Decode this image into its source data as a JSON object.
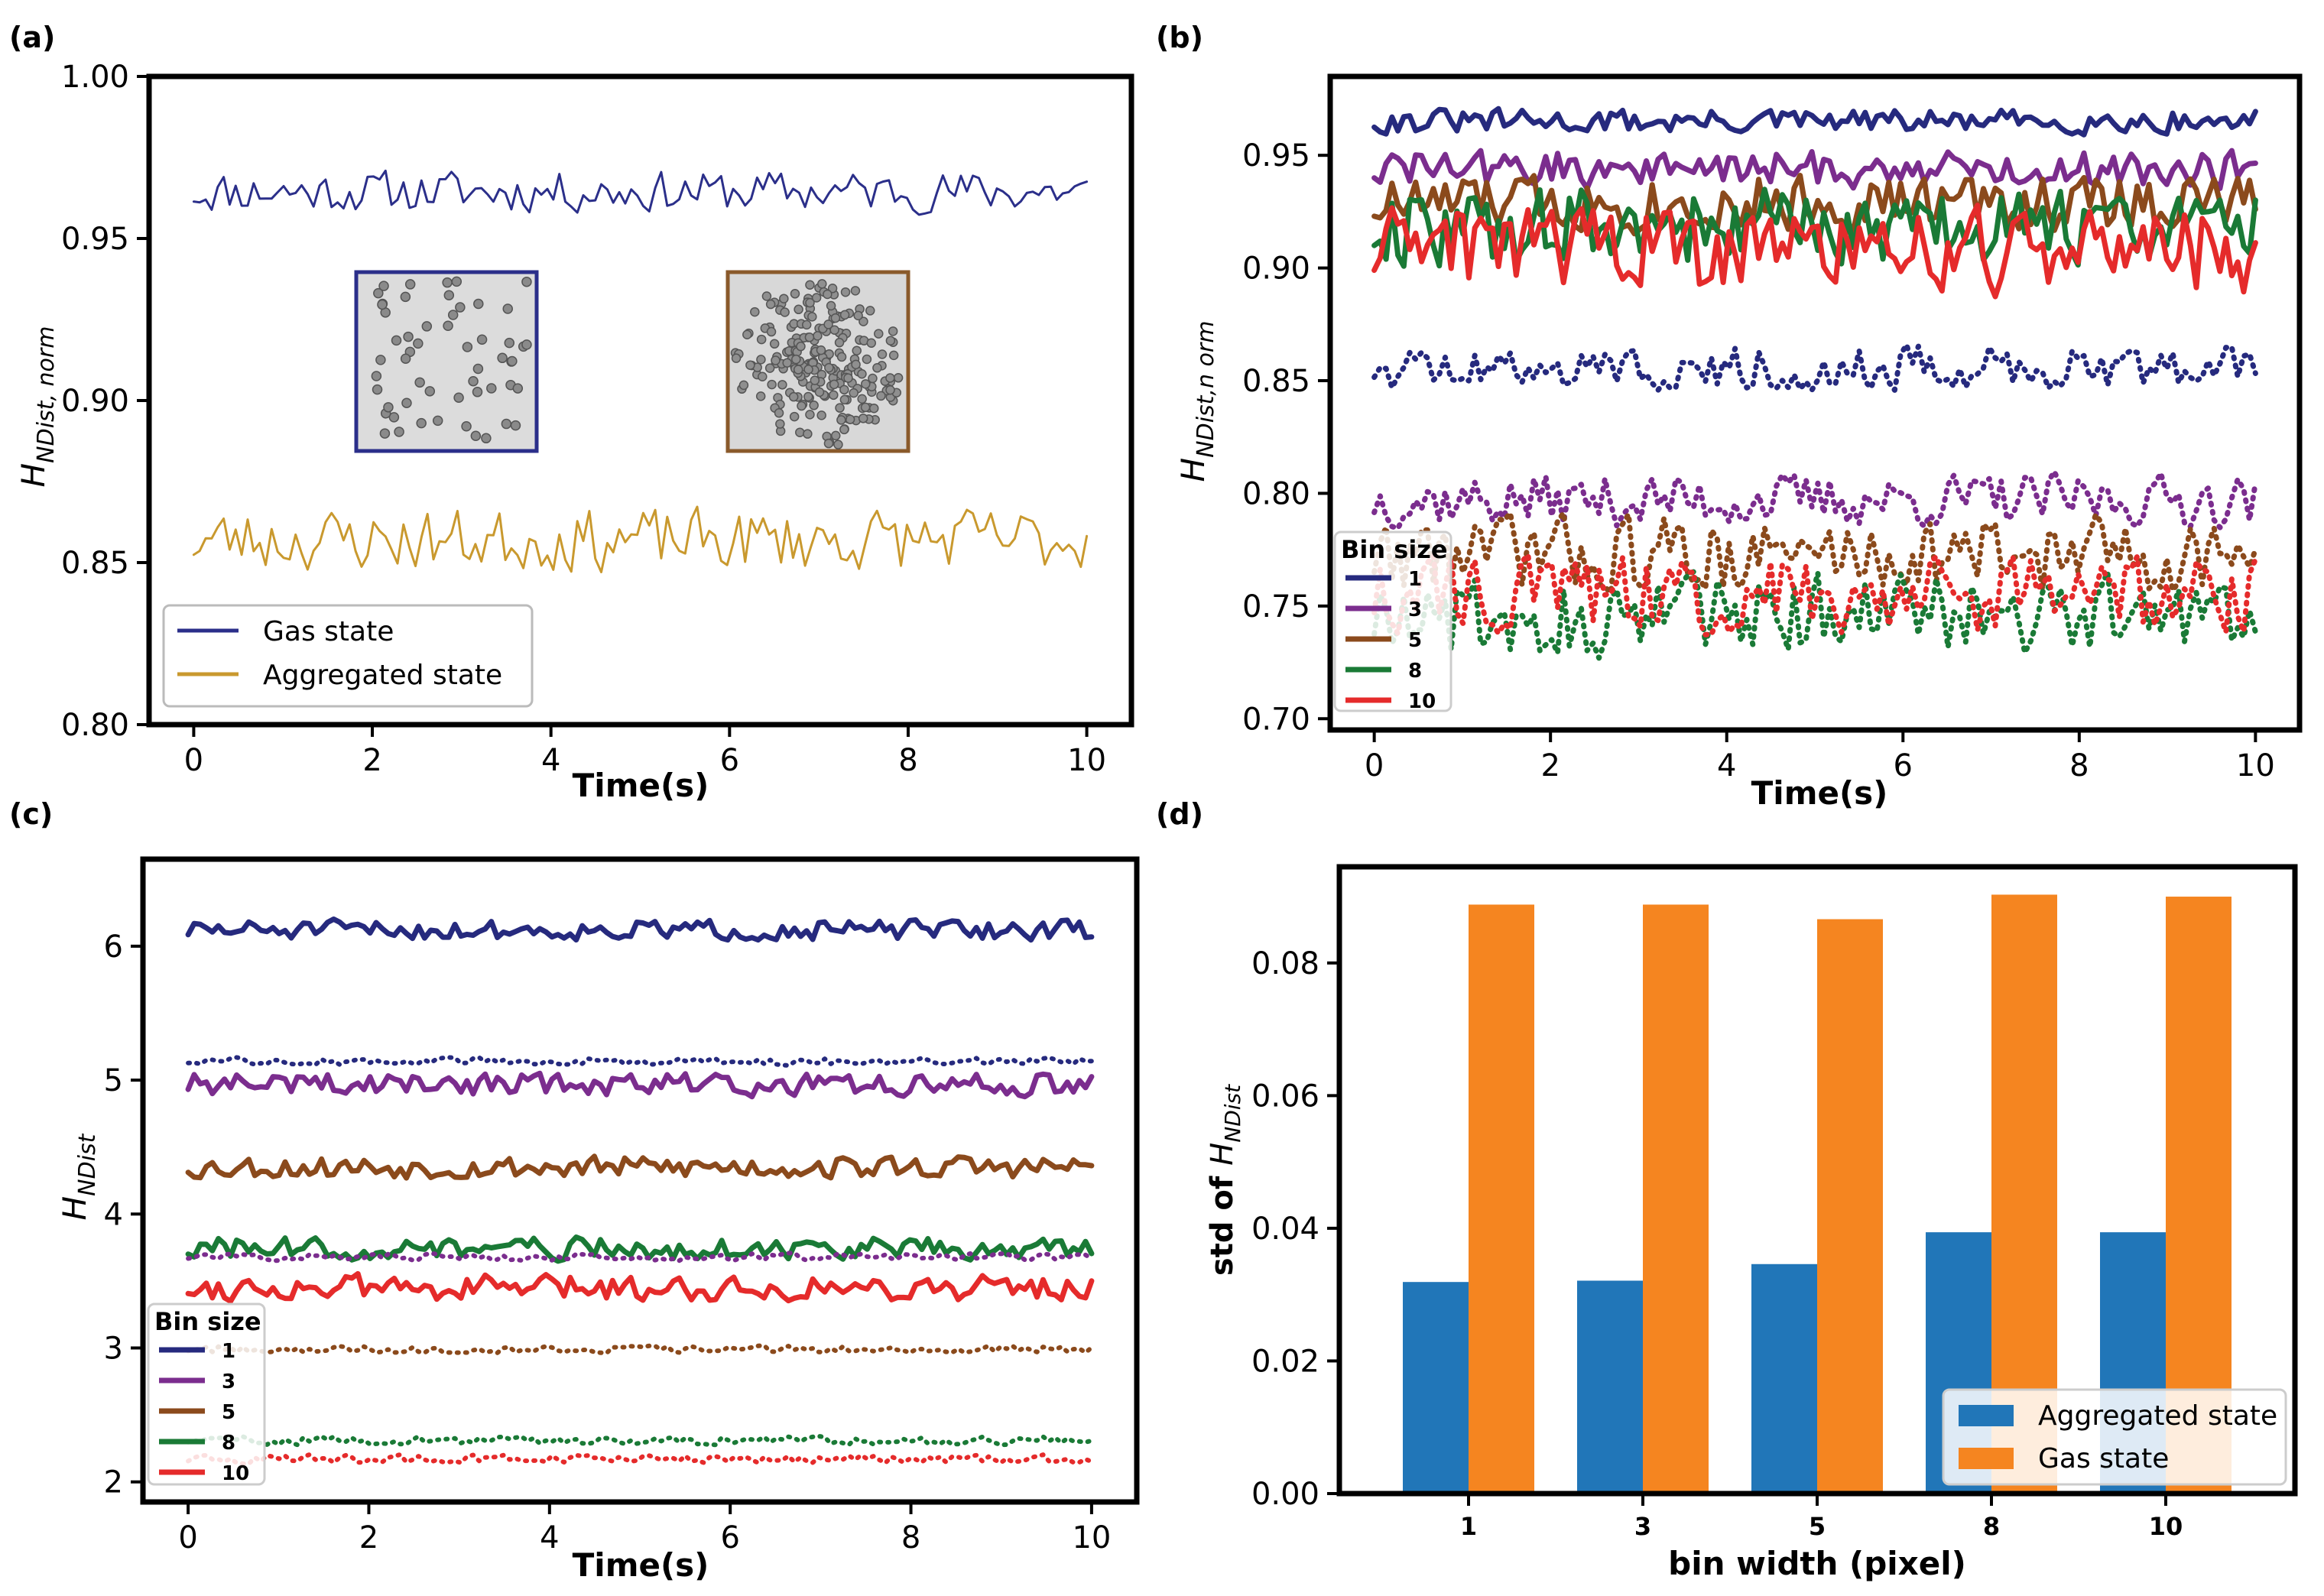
{
  "chart_data": [
    {
      "panel": "(a)",
      "type": "line",
      "xlabel": "Time(s)",
      "ylabel": "H_{NDist, norm}",
      "xticks": [
        0,
        2,
        4,
        6,
        8,
        10
      ],
      "yticks": [
        "0.80",
        "0.85",
        "0.90",
        "0.95",
        "1.00"
      ],
      "xlim": [
        -0.5,
        10.5
      ],
      "ylim": [
        0.8,
        1.0
      ],
      "series": [
        {
          "name": "Gas state",
          "color": "#2b2f8a",
          "mean": 0.9645,
          "amp": 0.006,
          "seed": 11,
          "style": "solid",
          "width": 3
        },
        {
          "name": "Aggregated state",
          "color": "#c9992e",
          "mean": 0.857,
          "amp": 0.009,
          "seed": 23,
          "style": "solid",
          "width": 3
        }
      ],
      "insets": [
        {
          "name": "gas-state-image",
          "border": "#2b2f8a"
        },
        {
          "name": "aggregated-state-image",
          "border": "#8a5a2b"
        }
      ]
    },
    {
      "panel": "(b)",
      "type": "line",
      "xlabel": "Time(s)",
      "ylabel": "H_{NDist,n orm}",
      "xticks": [
        0,
        2,
        4,
        6,
        8,
        10
      ],
      "yticks": [
        "0.70",
        "0.75",
        "0.80",
        "0.85",
        "0.90",
        "0.95"
      ],
      "xlim": [
        -0.5,
        10.5
      ],
      "ylim": [
        0.695,
        0.985
      ],
      "legend_title": "Bin size",
      "legend": [
        "1",
        "3",
        "5",
        "8",
        "10"
      ],
      "series": [
        {
          "name": "1 solid",
          "color": "#262a7e",
          "mean": 0.965,
          "amp": 0.005,
          "seed": 31,
          "style": "solid",
          "width": 7
        },
        {
          "name": "3 solid",
          "color": "#7b2d8e",
          "mean": 0.944,
          "amp": 0.008,
          "seed": 32,
          "style": "solid",
          "width": 7
        },
        {
          "name": "5 solid",
          "color": "#8b4a1c",
          "mean": 0.929,
          "amp": 0.012,
          "seed": 33,
          "style": "solid",
          "width": 7
        },
        {
          "name": "8 solid",
          "color": "#1a7a36",
          "mean": 0.918,
          "amp": 0.016,
          "seed": 34,
          "style": "solid",
          "width": 7
        },
        {
          "name": "10 solid",
          "color": "#e52b2b",
          "mean": 0.908,
          "amp": 0.018,
          "seed": 35,
          "style": "solid",
          "width": 7
        },
        {
          "name": "1 dotted",
          "color": "#262a7e",
          "mean": 0.856,
          "amp": 0.009,
          "seed": 36,
          "style": "dotted",
          "width": 7
        },
        {
          "name": "3 dotted",
          "color": "#7b2d8e",
          "mean": 0.797,
          "amp": 0.011,
          "seed": 37,
          "style": "dotted",
          "width": 7
        },
        {
          "name": "5 dotted",
          "color": "#8b4a1c",
          "mean": 0.773,
          "amp": 0.016,
          "seed": 38,
          "style": "dotted",
          "width": 7
        },
        {
          "name": "8 dotted",
          "color": "#1a7a36",
          "mean": 0.746,
          "amp": 0.017,
          "seed": 39,
          "style": "dotted",
          "width": 7
        },
        {
          "name": "10 dotted",
          "color": "#e52b2b",
          "mean": 0.755,
          "amp": 0.016,
          "seed": 40,
          "style": "dotted",
          "width": 7
        }
      ]
    },
    {
      "panel": "(c)",
      "type": "line",
      "xlabel": "Time(s)",
      "ylabel": "H_{NDist}",
      "xticks": [
        0,
        2,
        4,
        6,
        8,
        10
      ],
      "yticks": [
        "2",
        "3",
        "4",
        "5",
        "6"
      ],
      "xlim": [
        -0.5,
        10.5
      ],
      "ylim": [
        1.85,
        6.65
      ],
      "legend_title": "Bin size",
      "legend": [
        "1",
        "3",
        "5",
        "8",
        "10"
      ],
      "series": [
        {
          "name": "1 solid",
          "color": "#262a7e",
          "mean": 6.12,
          "amp": 0.07,
          "seed": 51,
          "style": "solid",
          "width": 7
        },
        {
          "name": "3 solid",
          "color": "#7b2d8e",
          "mean": 4.97,
          "amp": 0.08,
          "seed": 52,
          "style": "solid",
          "width": 7
        },
        {
          "name": "5 solid",
          "color": "#8b4a1c",
          "mean": 4.35,
          "amp": 0.08,
          "seed": 53,
          "style": "solid",
          "width": 7
        },
        {
          "name": "8 solid",
          "color": "#1a7a36",
          "mean": 3.74,
          "amp": 0.08,
          "seed": 54,
          "style": "solid",
          "width": 7
        },
        {
          "name": "10 solid",
          "color": "#e52b2b",
          "mean": 3.45,
          "amp": 0.09,
          "seed": 55,
          "style": "solid",
          "width": 7
        },
        {
          "name": "1 dotted",
          "color": "#262a7e",
          "mean": 5.14,
          "amp": 0.025,
          "seed": 56,
          "style": "dotted",
          "width": 6
        },
        {
          "name": "3 dotted",
          "color": "#7b2d8e",
          "mean": 3.68,
          "amp": 0.025,
          "seed": 57,
          "style": "dotted",
          "width": 6
        },
        {
          "name": "5 dotted",
          "color": "#8b4a1c",
          "mean": 2.99,
          "amp": 0.025,
          "seed": 58,
          "style": "dotted",
          "width": 6
        },
        {
          "name": "8 dotted",
          "color": "#1a7a36",
          "mean": 2.31,
          "amp": 0.03,
          "seed": 59,
          "style": "dotted",
          "width": 6
        },
        {
          "name": "10 dotted",
          "color": "#e52b2b",
          "mean": 2.17,
          "amp": 0.03,
          "seed": 60,
          "style": "dotted",
          "width": 6
        }
      ]
    },
    {
      "panel": "(d)",
      "type": "bar",
      "xlabel": "bin width (pixel)",
      "ylabel": "std of H_{NDist}",
      "categories": [
        "1",
        "3",
        "5",
        "8",
        "10"
      ],
      "yticks": [
        "0.00",
        "0.02",
        "0.04",
        "0.06",
        "0.08"
      ],
      "ylim": [
        0,
        0.0945
      ],
      "series": [
        {
          "name": "Aggregated state",
          "color": "#2176b8",
          "values": [
            0.0319,
            0.0321,
            0.0346,
            0.0394,
            0.0394
          ]
        },
        {
          "name": "Gas state",
          "color": "#f58520",
          "values": [
            0.0888,
            0.0888,
            0.0866,
            0.0903,
            0.09
          ]
        }
      ]
    }
  ]
}
